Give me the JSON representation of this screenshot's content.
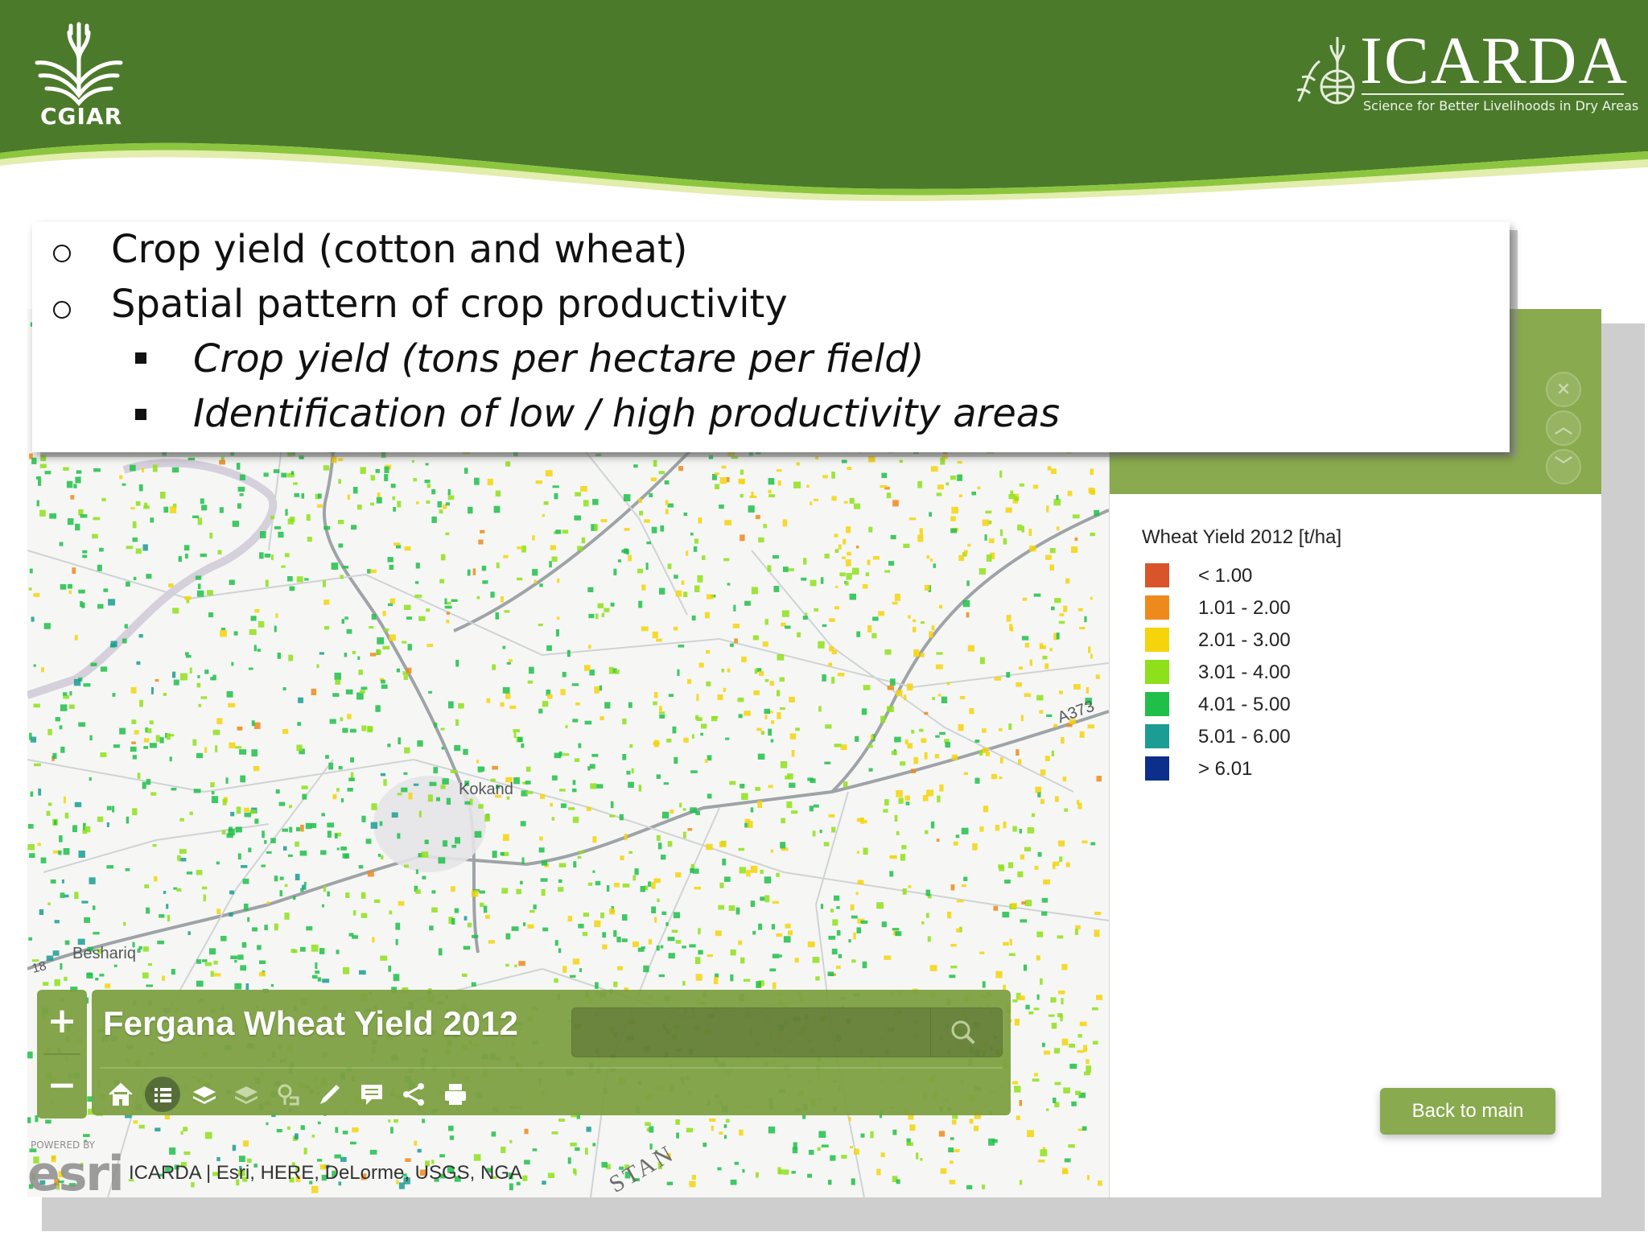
{
  "header": {
    "left_logo_text": "CGIAR",
    "right_logo_name": "ICARDA",
    "right_logo_tagline": "Science for Better Livelihoods in Dry Areas",
    "colors": {
      "banner": "#4b7a2b",
      "swoosh": "#8cc63f"
    }
  },
  "bullets": [
    {
      "level": 1,
      "text": "Crop yield (cotton and wheat)"
    },
    {
      "level": 1,
      "text": "Spatial pattern of crop productivity"
    },
    {
      "level": 2,
      "text": "Crop yield (tons per hectare per field)"
    },
    {
      "level": 2,
      "text": "Identification of low / high productivity areas"
    }
  ],
  "map": {
    "title": "Fergana Wheat Yield 2012",
    "search": {
      "value": "",
      "placeholder": ""
    },
    "zoom_in_label": "+",
    "zoom_out_label": "−",
    "toolbar_icons": [
      "home-icon",
      "list-icon",
      "layers-icon",
      "basemap-icon",
      "bookmark-icon",
      "draw-icon",
      "comment-icon",
      "share-icon",
      "print-icon"
    ],
    "place_labels": {
      "kokand": "Kokand",
      "beshariq": "Beshariq",
      "road": "A373",
      "country": "STAN",
      "road_num": "18"
    },
    "attribution": "ICARDA | Esri, HERE, DeLorme, USGS, NGA",
    "esri_logo": "esri",
    "esri_powered": "POWERED BY"
  },
  "panel": {
    "legend_title": "Wheat Yield 2012 [t/ha]",
    "legend": [
      {
        "label": "< 1.00",
        "color": "#d9542b"
      },
      {
        "label": "1.01 - 2.00",
        "color": "#ee8a1c"
      },
      {
        "label": "2.01 - 3.00",
        "color": "#f5d40c"
      },
      {
        "label": "3.01 - 4.00",
        "color": "#8ee01a"
      },
      {
        "label": "4.01 - 5.00",
        "color": "#1fbf4a"
      },
      {
        "label": "5.01 - 6.00",
        "color": "#1b9c94"
      },
      {
        "label": "> 6.01",
        "color": "#0b2f8a"
      }
    ],
    "back_button_label": "Back to main",
    "control_icons": [
      "close-icon",
      "chevron-up-icon",
      "chevron-down-icon"
    ]
  }
}
